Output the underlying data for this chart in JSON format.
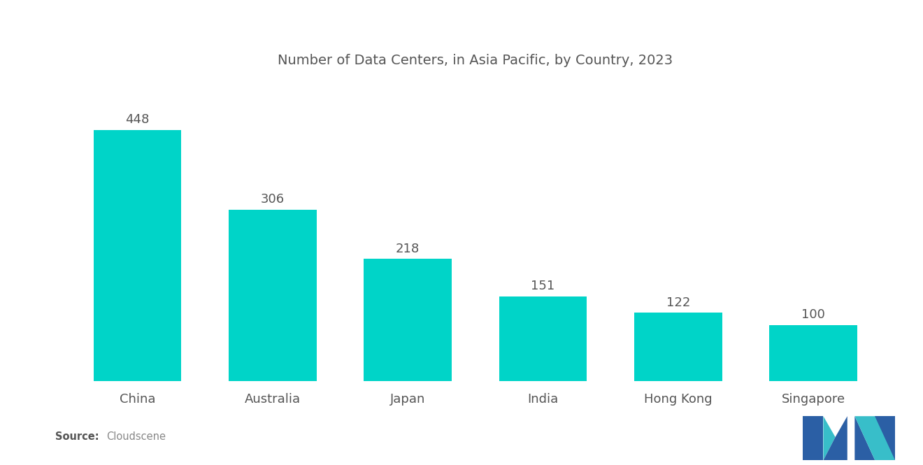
{
  "title": "Number of Data Centers, in Asia Pacific, by Country, 2023",
  "categories": [
    "China",
    "Australia",
    "Japan",
    "India",
    "Hong Kong",
    "Singapore"
  ],
  "values": [
    448,
    306,
    218,
    151,
    122,
    100
  ],
  "bar_color": "#00D4C8",
  "background_color": "#ffffff",
  "title_fontsize": 14,
  "label_fontsize": 13,
  "value_fontsize": 13,
  "source_bold": "Source:",
  "source_text": "Cloudscene",
  "ylim": [
    0,
    530
  ],
  "bar_width": 0.65
}
